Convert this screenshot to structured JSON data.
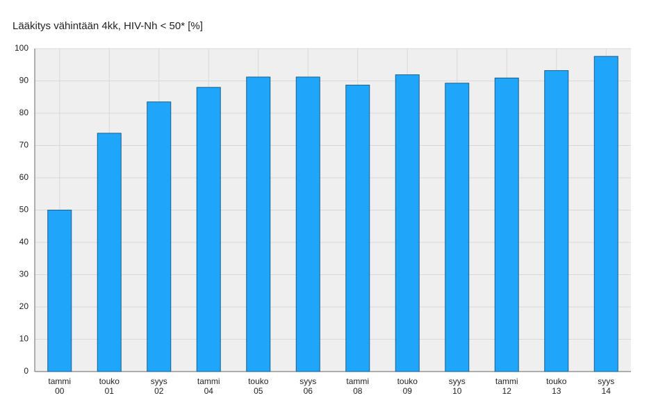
{
  "chart_data": {
    "type": "bar",
    "title": "Lääkitys vähintään 4kk, HIV-Nh < 50* [%]",
    "categories": [
      [
        "tammi",
        "00"
      ],
      [
        "touko",
        "01"
      ],
      [
        "syys",
        "02"
      ],
      [
        "tammi",
        "04"
      ],
      [
        "touko",
        "05"
      ],
      [
        "syys",
        "06"
      ],
      [
        "tammi",
        "08"
      ],
      [
        "touko",
        "09"
      ],
      [
        "syys",
        "10"
      ],
      [
        "tammi",
        "12"
      ],
      [
        "touko",
        "13"
      ],
      [
        "syys",
        "14"
      ]
    ],
    "values": [
      50,
      73.8,
      83.5,
      88,
      91.2,
      91.2,
      88.7,
      91.9,
      89.3,
      90.9,
      93.2,
      97.6
    ],
    "color": "#1fa6fb",
    "ylim": [
      0,
      100
    ],
    "yticks": [
      0,
      10,
      20,
      30,
      40,
      50,
      60,
      70,
      80,
      90,
      100
    ],
    "grid": true
  }
}
